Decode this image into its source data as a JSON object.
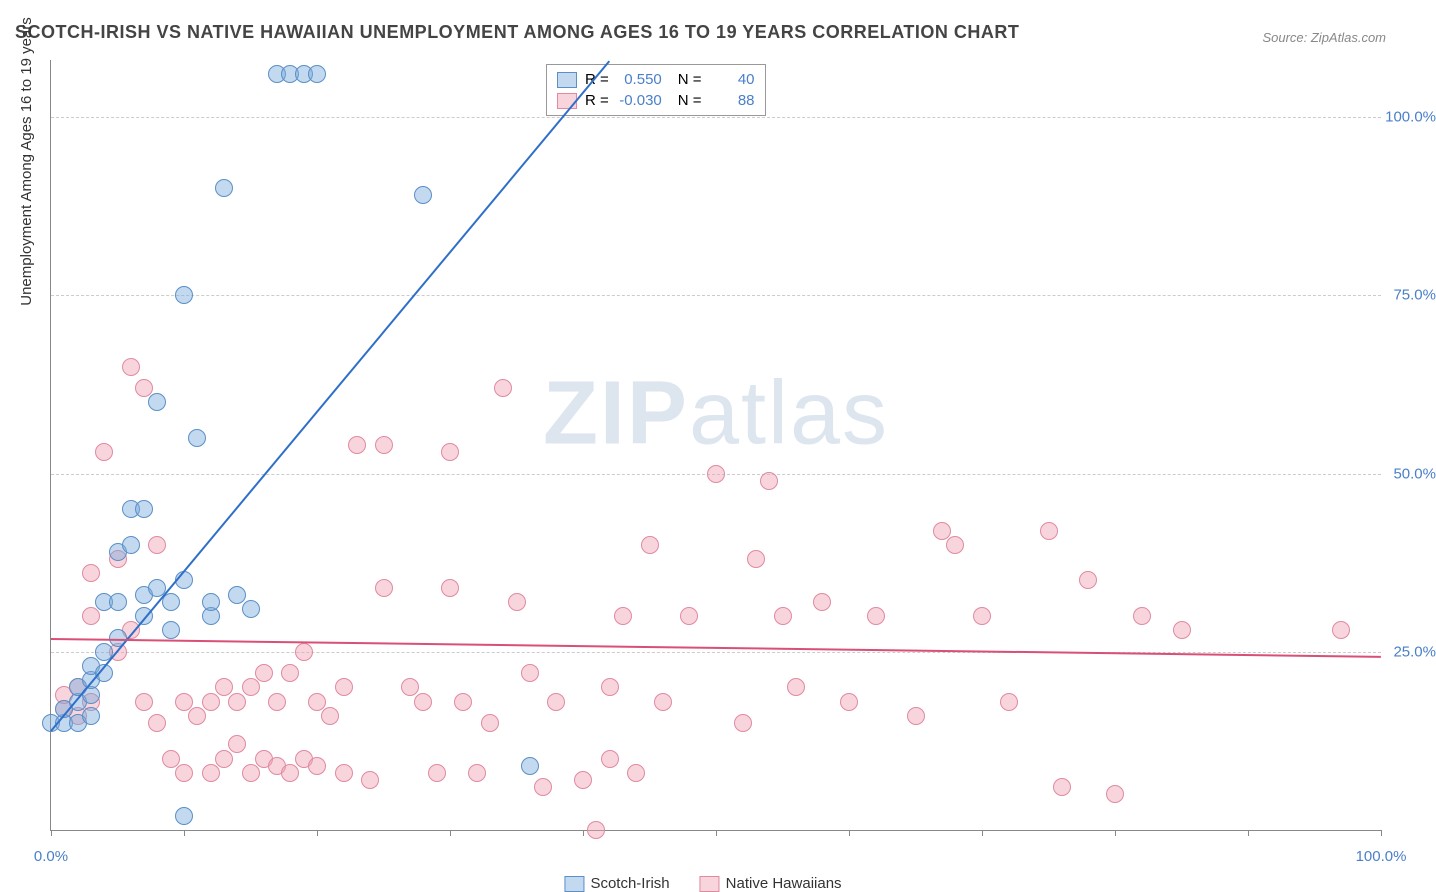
{
  "title": "SCOTCH-IRISH VS NATIVE HAWAIIAN UNEMPLOYMENT AMONG AGES 16 TO 19 YEARS CORRELATION CHART",
  "source": "Source: ZipAtlas.com",
  "ylabel": "Unemployment Among Ages 16 to 19 years",
  "watermark_zip": "ZIP",
  "watermark_atlas": "atlas",
  "chart": {
    "type": "scatter",
    "xlim": [
      0,
      100
    ],
    "ylim": [
      0,
      108
    ],
    "ytick_step": 25,
    "ytick_labels": [
      "25.0%",
      "50.0%",
      "75.0%",
      "100.0%"
    ],
    "ytick_values": [
      25,
      50,
      75,
      100
    ],
    "xtick_values": [
      0,
      10,
      20,
      30,
      40,
      50,
      60,
      70,
      80,
      90,
      100
    ],
    "xaxis_label_left": "0.0%",
    "xaxis_label_right": "100.0%",
    "background_color": "#ffffff",
    "grid_color": "#cccccc",
    "marker_radius": 8,
    "series": [
      {
        "name": "Scotch-Irish",
        "fill": "rgba(120,170,220,0.45)",
        "stroke": "#5b8fc7",
        "trend_color": "#2f6fc9",
        "trend": {
          "x1": 0,
          "y1": 14,
          "x2": 42,
          "y2": 108
        },
        "R": "0.550",
        "N": "40",
        "points": [
          [
            0,
            15
          ],
          [
            1,
            15
          ],
          [
            1,
            17
          ],
          [
            2,
            15
          ],
          [
            2,
            18
          ],
          [
            2,
            20
          ],
          [
            3,
            16
          ],
          [
            3,
            19
          ],
          [
            3,
            21
          ],
          [
            3,
            23
          ],
          [
            4,
            22
          ],
          [
            4,
            25
          ],
          [
            4,
            32
          ],
          [
            5,
            27
          ],
          [
            5,
            32
          ],
          [
            5,
            39
          ],
          [
            6,
            40
          ],
          [
            6,
            45
          ],
          [
            7,
            30
          ],
          [
            7,
            33
          ],
          [
            7,
            45
          ],
          [
            8,
            34
          ],
          [
            8,
            60
          ],
          [
            9,
            28
          ],
          [
            9,
            32
          ],
          [
            10,
            35
          ],
          [
            10,
            75
          ],
          [
            11,
            55
          ],
          [
            12,
            30
          ],
          [
            12,
            32
          ],
          [
            13,
            90
          ],
          [
            14,
            33
          ],
          [
            15,
            31
          ],
          [
            17,
            106
          ],
          [
            18,
            106
          ],
          [
            19,
            106
          ],
          [
            20,
            106
          ],
          [
            28,
            89
          ],
          [
            36,
            9
          ],
          [
            10,
            2
          ]
        ]
      },
      {
        "name": "Native Hawaiians",
        "fill": "rgba(240,160,180,0.45)",
        "stroke": "#e08aa0",
        "trend_color": "#d94f75",
        "trend": {
          "x1": 0,
          "y1": 27,
          "x2": 100,
          "y2": 24.5
        },
        "R": "-0.030",
        "N": "88",
        "points": [
          [
            1,
            17
          ],
          [
            1,
            19
          ],
          [
            2,
            16
          ],
          [
            2,
            20
          ],
          [
            3,
            18
          ],
          [
            3,
            30
          ],
          [
            3,
            36
          ],
          [
            4,
            53
          ],
          [
            5,
            25
          ],
          [
            5,
            38
          ],
          [
            6,
            28
          ],
          [
            6,
            65
          ],
          [
            7,
            18
          ],
          [
            7,
            62
          ],
          [
            8,
            15
          ],
          [
            8,
            40
          ],
          [
            9,
            10
          ],
          [
            10,
            8
          ],
          [
            10,
            18
          ],
          [
            11,
            16
          ],
          [
            12,
            8
          ],
          [
            12,
            18
          ],
          [
            13,
            10
          ],
          [
            13,
            20
          ],
          [
            14,
            12
          ],
          [
            14,
            18
          ],
          [
            15,
            8
          ],
          [
            15,
            20
          ],
          [
            16,
            10
          ],
          [
            16,
            22
          ],
          [
            17,
            9
          ],
          [
            17,
            18
          ],
          [
            18,
            8
          ],
          [
            18,
            22
          ],
          [
            19,
            10
          ],
          [
            19,
            25
          ],
          [
            20,
            9
          ],
          [
            20,
            18
          ],
          [
            21,
            16
          ],
          [
            22,
            8
          ],
          [
            22,
            20
          ],
          [
            23,
            54
          ],
          [
            24,
            7
          ],
          [
            25,
            34
          ],
          [
            25,
            54
          ],
          [
            27,
            20
          ],
          [
            28,
            18
          ],
          [
            29,
            8
          ],
          [
            30,
            34
          ],
          [
            30,
            53
          ],
          [
            31,
            18
          ],
          [
            32,
            8
          ],
          [
            33,
            15
          ],
          [
            34,
            62
          ],
          [
            35,
            32
          ],
          [
            36,
            22
          ],
          [
            37,
            6
          ],
          [
            38,
            18
          ],
          [
            40,
            7
          ],
          [
            41,
            0
          ],
          [
            42,
            10
          ],
          [
            42,
            20
          ],
          [
            43,
            30
          ],
          [
            44,
            8
          ],
          [
            45,
            40
          ],
          [
            46,
            18
          ],
          [
            48,
            30
          ],
          [
            50,
            50
          ],
          [
            52,
            15
          ],
          [
            53,
            38
          ],
          [
            54,
            49
          ],
          [
            55,
            30
          ],
          [
            56,
            20
          ],
          [
            58,
            32
          ],
          [
            60,
            18
          ],
          [
            62,
            30
          ],
          [
            65,
            16
          ],
          [
            67,
            42
          ],
          [
            68,
            40
          ],
          [
            70,
            30
          ],
          [
            72,
            18
          ],
          [
            75,
            42
          ],
          [
            76,
            6
          ],
          [
            78,
            35
          ],
          [
            80,
            5
          ],
          [
            82,
            30
          ],
          [
            85,
            28
          ],
          [
            97,
            28
          ]
        ]
      }
    ],
    "legend": [
      "Scotch-Irish",
      "Native Hawaiians"
    ]
  },
  "stats_box": {
    "r_label": "R =",
    "n_label": "N ="
  }
}
